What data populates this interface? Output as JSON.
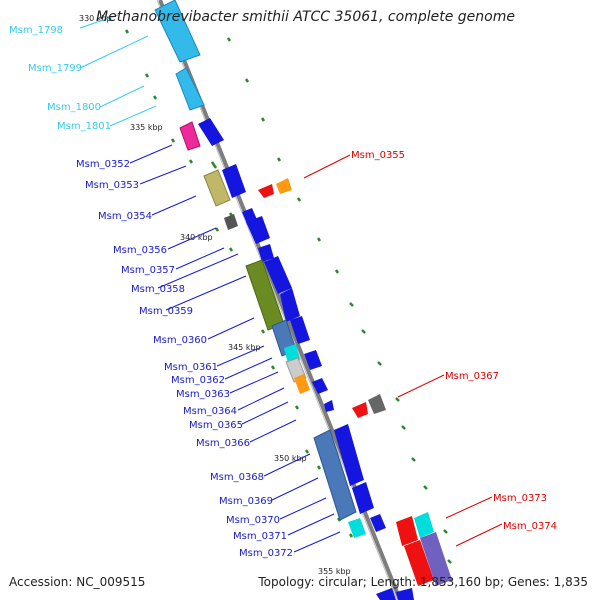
{
  "title": "Methanobrevibacter smithii ATCC 35061, complete genome",
  "accession_label": "Accession: NC_009515",
  "topology_label": "Topology: circular; Length: 1,853,160 bp; Genes: 1,835",
  "ticks": [
    "330 kbp",
    "335 kbp",
    "340 kbp",
    "345 kbp",
    "350 kbp",
    "355 kbp"
  ],
  "left_labels": [
    {
      "text": "Msm_1798",
      "color": "#33ccee"
    },
    {
      "text": "Msm_1799",
      "color": "#33ccee"
    },
    {
      "text": "Msm_1800",
      "color": "#33ccee"
    },
    {
      "text": "Msm_1801",
      "color": "#33ccee"
    },
    {
      "text": "Msm_0352",
      "color": "#1a1acc"
    },
    {
      "text": "Msm_0353",
      "color": "#1a1acc"
    },
    {
      "text": "Msm_0354",
      "color": "#1a1acc"
    },
    {
      "text": "Msm_0356",
      "color": "#1a1acc"
    },
    {
      "text": "Msm_0357",
      "color": "#1a1acc"
    },
    {
      "text": "Msm_0358",
      "color": "#1a1acc"
    },
    {
      "text": "Msm_0359",
      "color": "#1a1acc"
    },
    {
      "text": "Msm_0360",
      "color": "#1a1acc"
    },
    {
      "text": "Msm_0361",
      "color": "#1a1acc"
    },
    {
      "text": "Msm_0362",
      "color": "#1a1acc"
    },
    {
      "text": "Msm_0363",
      "color": "#1a1acc"
    },
    {
      "text": "Msm_0364",
      "color": "#1a1acc"
    },
    {
      "text": "Msm_0365",
      "color": "#1a1acc"
    },
    {
      "text": "Msm_0366",
      "color": "#1a1acc"
    },
    {
      "text": "Msm_0368",
      "color": "#1a1acc"
    },
    {
      "text": "Msm_0369",
      "color": "#1a1acc"
    },
    {
      "text": "Msm_0370",
      "color": "#1a1acc"
    },
    {
      "text": "Msm_0371",
      "color": "#1a1acc"
    },
    {
      "text": "Msm_0372",
      "color": "#1a1acc"
    }
  ],
  "right_labels": [
    {
      "text": "Msm_0355",
      "color": "#dd0000"
    },
    {
      "text": "Msm_0367",
      "color": "#dd0000"
    },
    {
      "text": "Msm_0373",
      "color": "#dd0000"
    },
    {
      "text": "Msm_0374",
      "color": "#dd0000"
    }
  ]
}
